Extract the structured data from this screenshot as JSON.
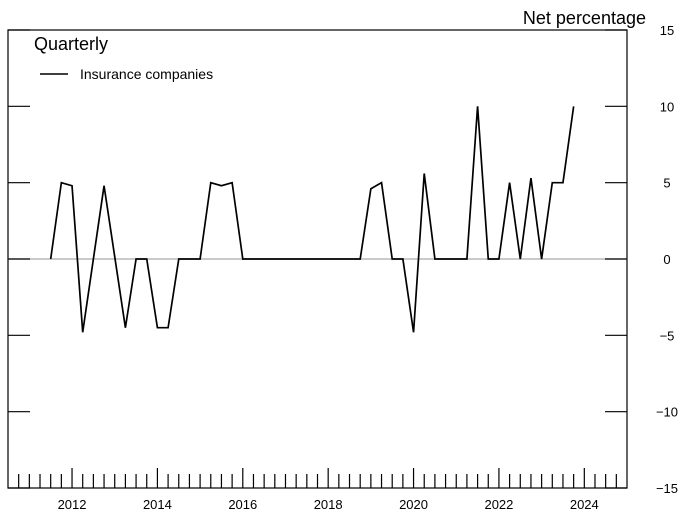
{
  "chart_data": {
    "type": "line",
    "title": "Quarterly",
    "ylabel": "Net percentage",
    "xlabel": "",
    "ylim": [
      -15,
      15
    ],
    "yticks": [
      15,
      10,
      5,
      0,
      -5,
      -10,
      -15
    ],
    "xlim": [
      2010.5,
      2025.0
    ],
    "xticks": [
      2012,
      2014,
      2016,
      2018,
      2020,
      2022,
      2024
    ],
    "grid": false,
    "zero_line": true,
    "legend": "top-left",
    "series": [
      {
        "name": "Insurance companies",
        "color": "#000000",
        "points": [
          [
            2011.5,
            0
          ],
          [
            2011.75,
            5
          ],
          [
            2012.0,
            4.8
          ],
          [
            2012.25,
            -4.8
          ],
          [
            2012.75,
            4.8
          ],
          [
            2013.25,
            -4.5
          ],
          [
            2013.5,
            0
          ],
          [
            2013.75,
            0
          ],
          [
            2014.0,
            -4.5
          ],
          [
            2014.25,
            -4.5
          ],
          [
            2014.5,
            0
          ],
          [
            2015.0,
            0
          ],
          [
            2015.25,
            5
          ],
          [
            2015.5,
            4.8
          ],
          [
            2015.75,
            5
          ],
          [
            2016.0,
            0
          ],
          [
            2018.75,
            0
          ],
          [
            2019.0,
            4.6
          ],
          [
            2019.25,
            5
          ],
          [
            2019.5,
            0
          ],
          [
            2019.75,
            0
          ],
          [
            2020.0,
            -4.8
          ],
          [
            2020.25,
            5.6
          ],
          [
            2020.5,
            0
          ],
          [
            2021.25,
            0
          ],
          [
            2021.5,
            10
          ],
          [
            2021.75,
            0
          ],
          [
            2022.0,
            0
          ],
          [
            2022.25,
            5
          ],
          [
            2022.5,
            0
          ],
          [
            2022.75,
            5.3
          ],
          [
            2023.0,
            0
          ],
          [
            2023.25,
            5
          ],
          [
            2023.5,
            5
          ],
          [
            2023.75,
            10
          ]
        ]
      }
    ]
  }
}
